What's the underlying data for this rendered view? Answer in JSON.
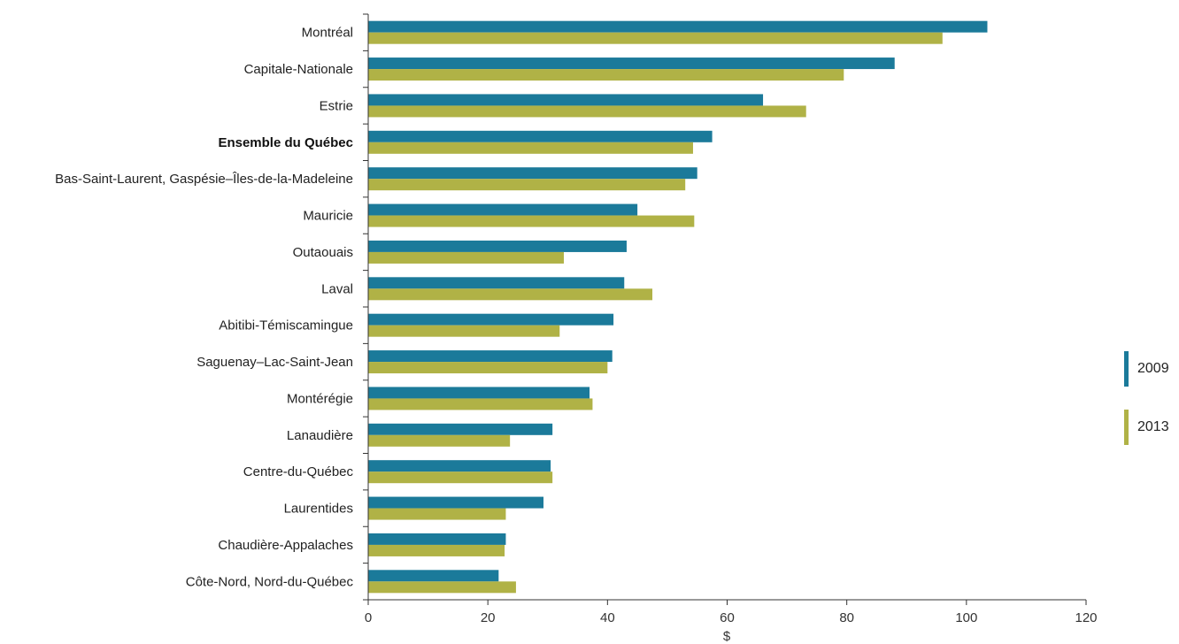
{
  "chart_data": {
    "type": "bar",
    "orientation": "horizontal",
    "categories": [
      "Montréal",
      "Capitale-Nationale",
      "Estrie",
      "Ensemble du Québec",
      "Bas-Saint-Laurent, Gaspésie–Îles-de-la-Madeleine",
      "Mauricie",
      "Outaouais",
      "Laval",
      "Abitibi-Témiscamingue",
      "Saguenay–Lac-Saint-Jean",
      "Montérégie",
      "Lanaudière",
      "Centre-du-Québec",
      "Laurentides",
      "Chaudière-Appalaches",
      "Côte-Nord, Nord-du-Québec"
    ],
    "highlighted_category": "Ensemble du Québec",
    "series": [
      {
        "name": "2009",
        "color": "#1b7a9a",
        "values": [
          103.5,
          88,
          66,
          57.5,
          55,
          45,
          43.2,
          42.8,
          41,
          40.8,
          37,
          30.8,
          30.5,
          29.3,
          23,
          21.8
        ]
      },
      {
        "name": "2013",
        "color": "#b0b246",
        "values": [
          96,
          79.5,
          73.2,
          54.3,
          53,
          54.5,
          32.7,
          47.5,
          32,
          40,
          37.5,
          23.7,
          30.8,
          23,
          22.8,
          24.7
        ]
      }
    ],
    "title": "",
    "xlabel": "$",
    "ylabel": "",
    "xlim": [
      0,
      120
    ],
    "xticks": [
      "0",
      "20",
      "40",
      "60",
      "80",
      "100",
      "120"
    ],
    "grid": false,
    "legend_position": "right"
  }
}
